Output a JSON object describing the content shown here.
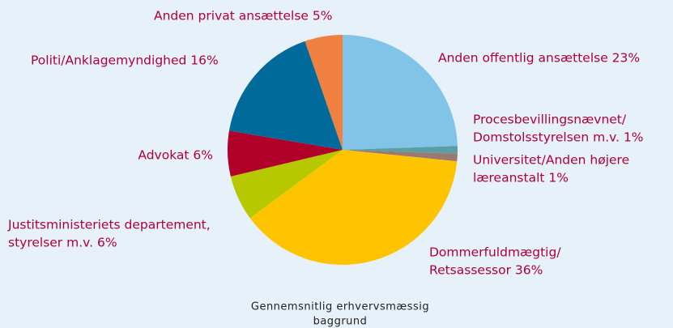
{
  "chart_data": {
    "type": "pie",
    "title": [
      "Gennemsnitlig erhvervsmæssig",
      "baggrund"
    ],
    "categories": [
      [
        "Anden privat ansættelse 5%"
      ],
      [
        "Anden offentlig ansættelse 23%"
      ],
      [
        "Procesbevillingsnævnet/",
        "Domstolsstyrelsen m.v. 1%"
      ],
      [
        "Universitet/Anden højere",
        "læreanstalt 1%"
      ],
      [
        "Dommerfuldmægtig/",
        "Retsassessor 36%"
      ],
      [
        "Justitsministeriets departement,",
        "styrelser m.v. 6%"
      ],
      [
        "Advokat 6%"
      ],
      [
        "Politi/Anklagemyndighed 16%"
      ]
    ],
    "values": [
      5,
      23,
      1,
      1,
      36,
      6,
      6,
      16
    ],
    "colors": [
      "#f08040",
      "#82c3e8",
      "#5b9ea5",
      "#9a7a70",
      "#ffc400",
      "#b5c800",
      "#b0002a",
      "#006a9a"
    ]
  }
}
